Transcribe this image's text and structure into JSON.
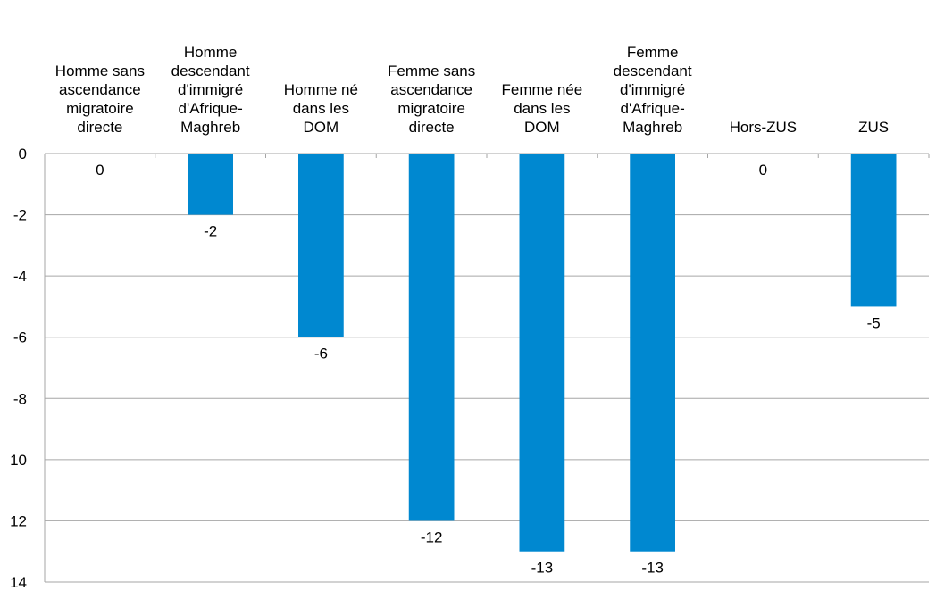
{
  "chart_data": {
    "type": "bar",
    "categories": [
      "Homme sans\nascendance\nmigratoire\ndirecte",
      "Homme\ndescendant\nd'immigré\nd'Afrique-\nMaghreb",
      "Homme né\ndans les\nDOM",
      "Femme sans\nascendance\nmigratoire\ndirecte",
      "Femme née\ndans les\nDOM",
      "Femme\ndescendant\nd'immigré\nd'Afrique-\nMaghreb",
      "Hors-ZUS",
      "ZUS"
    ],
    "values": [
      0,
      -2,
      -6,
      -12,
      -13,
      -13,
      0,
      -5
    ],
    "color": "#0088d0",
    "ylim": [
      -14,
      0
    ],
    "yticks": [
      0,
      -2,
      -4,
      -6,
      -8,
      {
        "value": -10,
        "label": "10"
      },
      {
        "value": -12,
        "label": "12"
      },
      {
        "value": -14,
        "label": "14"
      }
    ],
    "grid": true
  }
}
